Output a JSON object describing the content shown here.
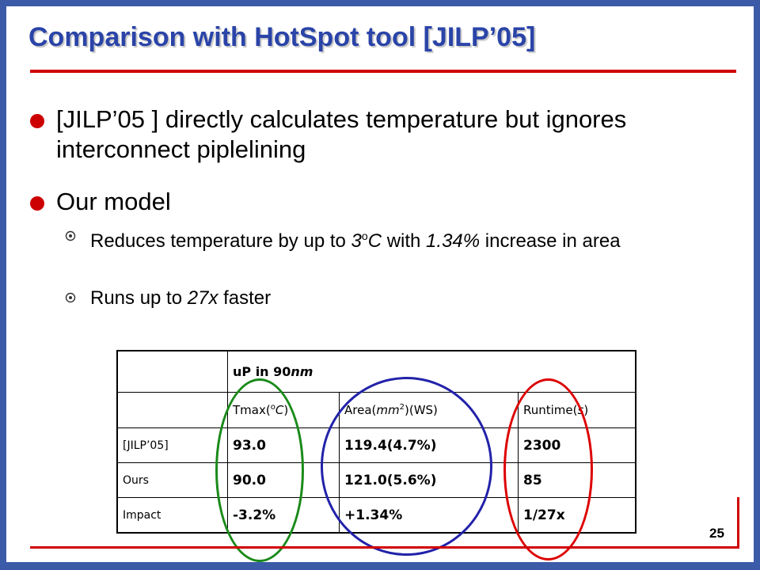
{
  "slide": {
    "title": "Comparison with HotSpot tool [JILP’05]",
    "page_number": "25",
    "colors": {
      "frame": "#3b5ba8",
      "title": "#2a44a8",
      "accent_red": "#d00000",
      "green_ellipse": "#1a8a1a",
      "blue_ellipse": "#2222aa",
      "red_ellipse": "#dd0000"
    }
  },
  "bullets": [
    {
      "text": "[JILP’05 ] directly calculates temperature but ignores interconnect piplelining"
    },
    {
      "text": "Our model",
      "sub": [
        {
          "p1": "Reduces temperature by up to ",
          "p2": "3",
          "p3": "o",
          "p4": "C",
          "p5": " with ",
          "p6": "1.34%",
          "p7": " increase in area"
        },
        {
          "p1": "Runs up to ",
          "p2": "27x",
          "p3": " faster"
        }
      ]
    }
  ],
  "table": {
    "header": {
      "p1": "uP in 90",
      "p2": "nm"
    },
    "columns": {
      "tmax": {
        "p1": "Tmax(",
        "p2": "o",
        "p3": "C",
        "p4": ")"
      },
      "area": {
        "p1": "Area(",
        "p2": "mm",
        "p3": "2",
        "p4": ")(WS)"
      },
      "runtime": {
        "p1": "Runtime(",
        "p2": "s",
        "p3": ")"
      }
    },
    "rows": [
      {
        "label": "[JILP’05]",
        "tmax": "93.0",
        "area": "119.4(4.7%)",
        "runtime": "2300"
      },
      {
        "label": "Ours",
        "tmax": "90.0",
        "area": "121.0(5.6%)",
        "runtime": "85"
      },
      {
        "label": "Impact",
        "tmax": "-3.2%",
        "area": "+1.34%",
        "runtime": "1/27x"
      }
    ]
  }
}
